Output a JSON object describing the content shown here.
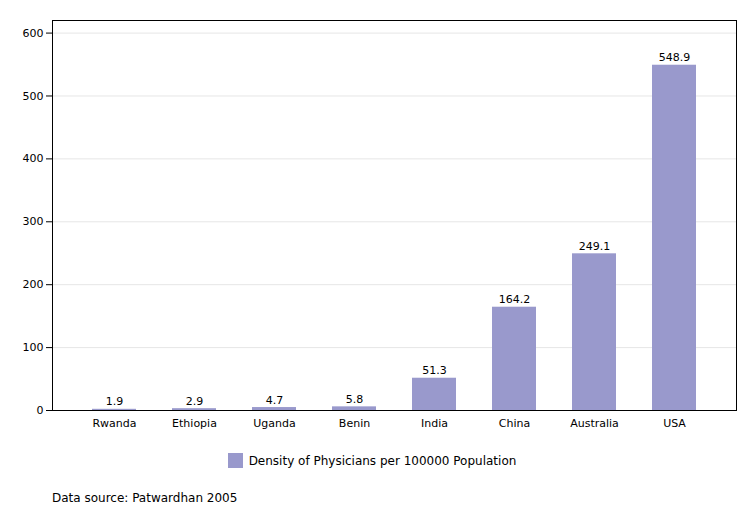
{
  "chart_data": {
    "type": "bar",
    "categories": [
      "Rwanda",
      "Ethiopia",
      "Uganda",
      "Benin",
      "India",
      "China",
      "Australia",
      "USA"
    ],
    "series": [
      {
        "name": "Density of Physicians per 100000 Population",
        "color": "#9999cc",
        "values": [
          1.9,
          2.9,
          4.7,
          5.8,
          51.3,
          164.2,
          249.1,
          548.9
        ]
      }
    ],
    "ylim": [
      0,
      620
    ],
    "yticks": [
      0,
      100,
      200,
      300,
      400,
      500,
      600
    ],
    "grid": true,
    "data_labels": true,
    "legend": "bottom",
    "annotations": [
      "Data source: Patwardhan 2005"
    ]
  }
}
